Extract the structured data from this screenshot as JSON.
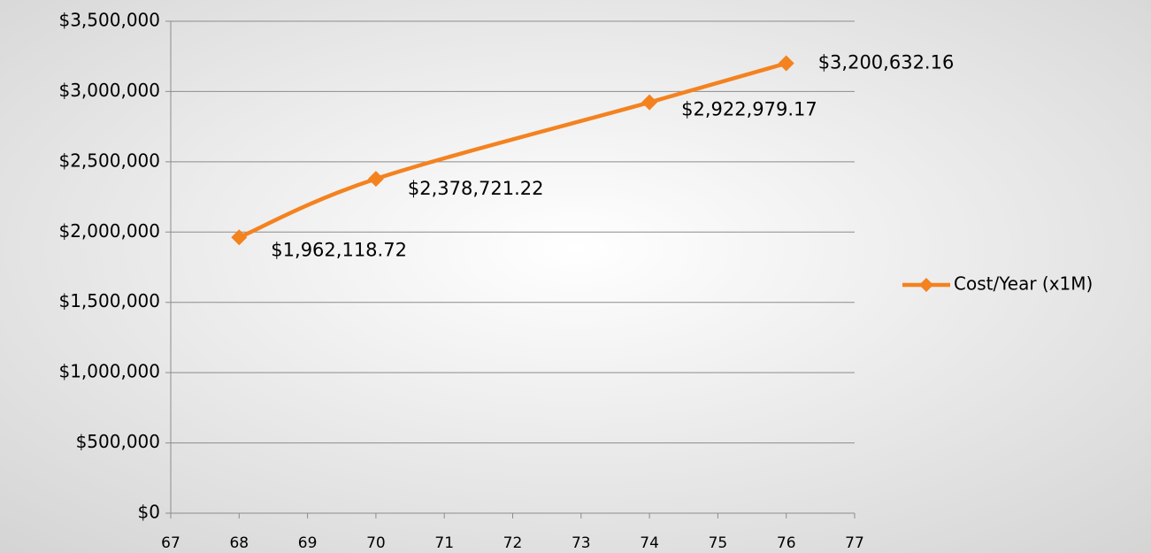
{
  "chart_data": {
    "type": "line",
    "x": [
      68,
      70,
      74,
      76
    ],
    "series": [
      {
        "name": "Cost/Year (x1M)",
        "color": "#f4821f",
        "values": [
          1962118.72,
          2378721.22,
          2922979.17,
          3200632.16
        ],
        "value_labels": [
          "$1,962,118.72",
          "$2,378,721.22",
          "$2,922,979.17",
          "$3,200,632.16"
        ]
      }
    ],
    "xlim": [
      67,
      77
    ],
    "xticks": [
      67,
      68,
      69,
      70,
      71,
      72,
      73,
      74,
      75,
      76,
      77
    ],
    "ylim": [
      0,
      3500000
    ],
    "yticks": [
      {
        "value": 0,
        "label": "$0"
      },
      {
        "value": 500000,
        "label": "$500,000"
      },
      {
        "value": 1000000,
        "label": "$1,000,000"
      },
      {
        "value": 1500000,
        "label": "$1,500,000"
      },
      {
        "value": 2000000,
        "label": "$2,000,000"
      },
      {
        "value": 2500000,
        "label": "$2,500,000"
      },
      {
        "value": 3000000,
        "label": "$3,000,000"
      },
      {
        "value": 3500000,
        "label": "$3,500,000"
      }
    ],
    "grid": true,
    "legend": "right"
  }
}
